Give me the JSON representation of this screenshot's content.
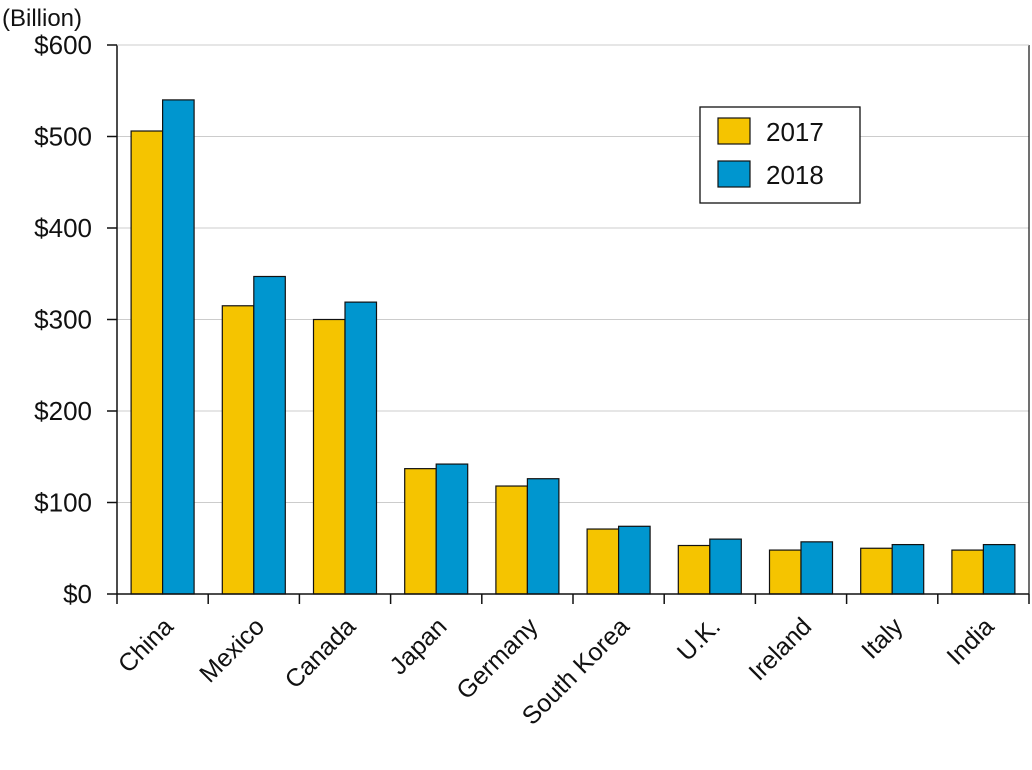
{
  "chart_data": {
    "type": "bar",
    "unit_label": "(Billion)",
    "categories": [
      "China",
      "Mexico",
      "Canada",
      "Japan",
      "Germany",
      "South Korea",
      "U.K.",
      "Ireland",
      "Italy",
      "India"
    ],
    "series": [
      {
        "name": "2017",
        "color": "#f5c400",
        "values": [
          506,
          315,
          300,
          137,
          118,
          71,
          53,
          48,
          50,
          48
        ]
      },
      {
        "name": "2018",
        "color": "#0096cf",
        "values": [
          540,
          347,
          319,
          142,
          126,
          74,
          60,
          57,
          54,
          54
        ]
      }
    ],
    "y_ticks": [
      "$0",
      "$100",
      "$200",
      "$300",
      "$400",
      "$500",
      "$600"
    ],
    "ylim": [
      0,
      600
    ],
    "grid": true,
    "legend_position": "top-right"
  }
}
